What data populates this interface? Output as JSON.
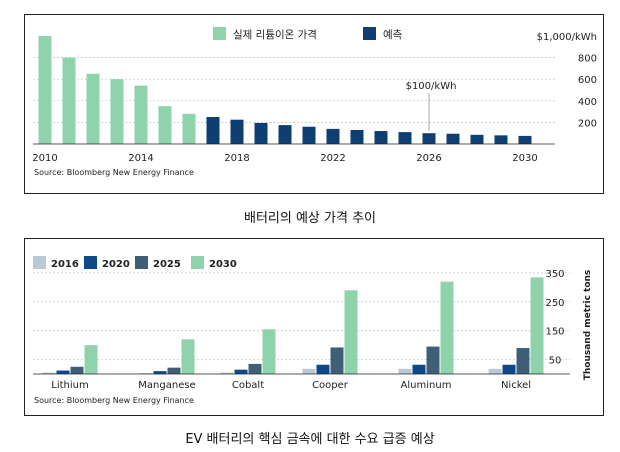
{
  "chart_data": [
    {
      "type": "bar",
      "caption": "배터리의 예상 가격 추이",
      "source": "Source: Bloomberg New Energy Finance",
      "x": [
        2010,
        2011,
        2012,
        2013,
        2014,
        2015,
        2016,
        2017,
        2018,
        2019,
        2020,
        2021,
        2022,
        2023,
        2024,
        2025,
        2026,
        2027,
        2028,
        2029,
        2030
      ],
      "x_tick_labels": [
        "2010",
        "2014",
        "2018",
        "2022",
        "2026",
        "2030"
      ],
      "series": [
        {
          "name": "실제 리튬이온 가격",
          "color": "#8fd3ac",
          "x": [
            2010,
            2011,
            2012,
            2013,
            2014,
            2015,
            2016
          ],
          "values": [
            1000,
            800,
            650,
            600,
            540,
            350,
            280
          ]
        },
        {
          "name": "예측",
          "color": "#0e3f73",
          "x": [
            2017,
            2018,
            2019,
            2020,
            2021,
            2022,
            2023,
            2024,
            2025,
            2026,
            2027,
            2028,
            2029,
            2030
          ],
          "values": [
            250,
            225,
            195,
            175,
            160,
            140,
            130,
            120,
            110,
            100,
            95,
            85,
            80,
            75
          ]
        }
      ],
      "y_tick_labels": [
        "$1,000/kWh",
        "800",
        "600",
        "400",
        "200"
      ],
      "ylim": [
        0,
        1000
      ],
      "annotation": {
        "text": "$100/kWh",
        "x": 2026,
        "value": 100
      },
      "legend_position": "top"
    },
    {
      "type": "bar",
      "caption": "EV 배터리의 핵심 금속에 대한 수요 급증 예상",
      "source": "Source: Bloomberg New Energy Finance",
      "categories": [
        "Lithium",
        "Manganese",
        "Cobalt",
        "Cooper",
        "Aluminum",
        "Nickel"
      ],
      "series": [
        {
          "name": "2016",
          "color": "#b9c9d6",
          "values": [
            5,
            3,
            5,
            18,
            18,
            18
          ]
        },
        {
          "name": "2020",
          "color": "#0e4a8a",
          "values": [
            12,
            10,
            15,
            32,
            32,
            32
          ]
        },
        {
          "name": "2025",
          "color": "#3f5f78",
          "values": [
            25,
            22,
            35,
            92,
            95,
            90
          ]
        },
        {
          "name": "2030",
          "color": "#8fd3ac",
          "values": [
            100,
            120,
            155,
            290,
            320,
            335
          ]
        }
      ],
      "ylabel": "Thousand metric tons",
      "y_tick_labels": [
        "350",
        "250",
        "150",
        "50"
      ],
      "y_ticks": [
        350,
        250,
        150,
        50
      ],
      "ylim": [
        0,
        350
      ],
      "legend_position": "top-left"
    }
  ]
}
